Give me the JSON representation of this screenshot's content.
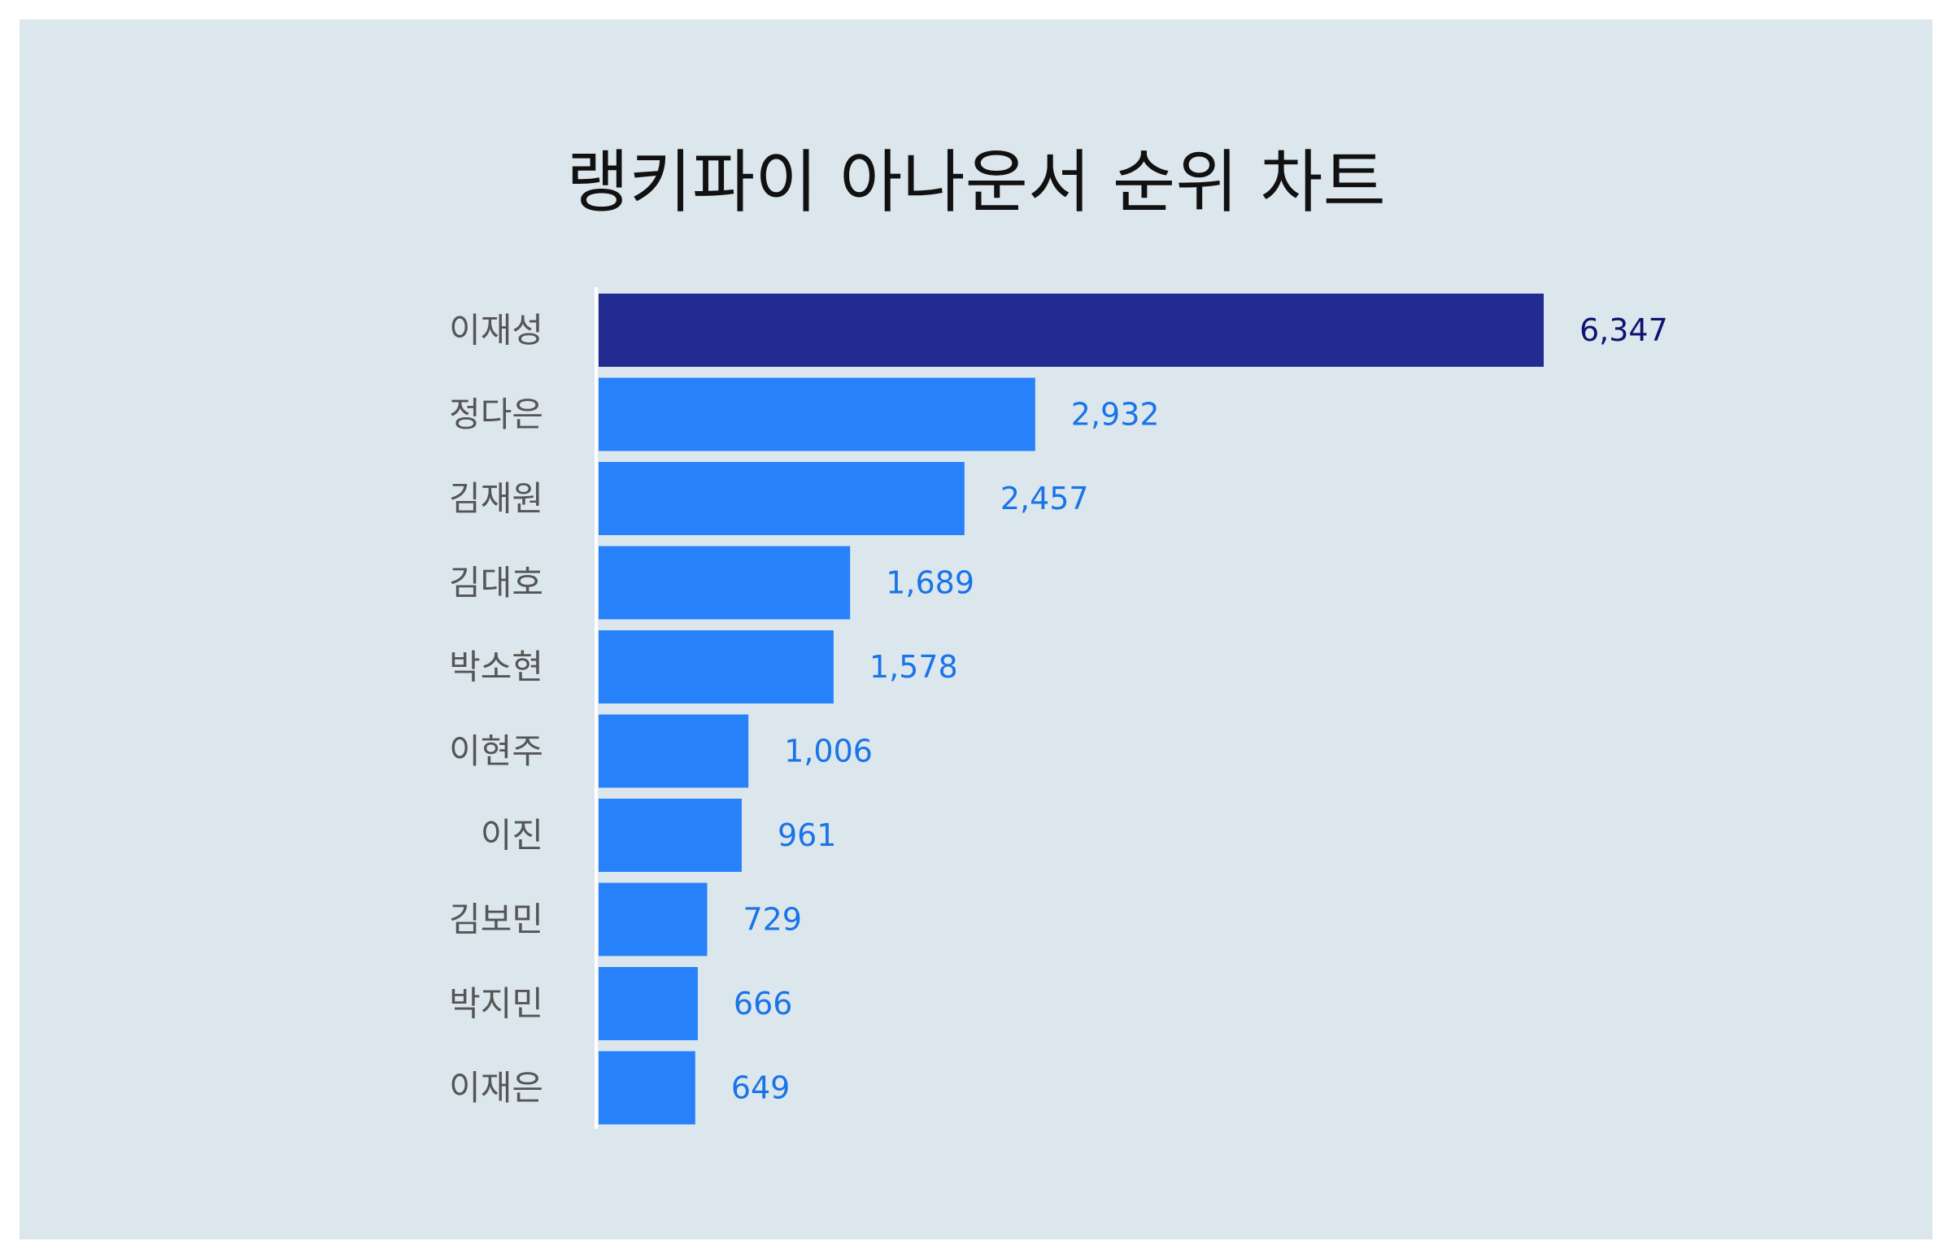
{
  "chart_data": {
    "type": "bar",
    "orientation": "horizontal",
    "title": "랭키파이 아나운서 순위 차트",
    "categories": [
      "이재성",
      "정다은",
      "김재원",
      "김대호",
      "박소현",
      "이현주",
      "이진",
      "김보민",
      "박지민",
      "이재은"
    ],
    "values": [
      6347,
      2932,
      2457,
      1689,
      1578,
      1006,
      961,
      729,
      666,
      649
    ],
    "value_labels": [
      "6,347",
      "2,932",
      "2,457",
      "1,689",
      "1,578",
      "1,006",
      "961",
      "729",
      "666",
      "649"
    ],
    "xlim": [
      0,
      6347
    ],
    "grid": false,
    "legend": "none",
    "colors": {
      "background": "#dce7ed",
      "top_bar": "#212b92",
      "bar": "#2681fb",
      "top_value_label": "#0e1370",
      "value_label": "#1a73e8",
      "category_label": "#555555",
      "axis_line": "#ffffff"
    }
  }
}
